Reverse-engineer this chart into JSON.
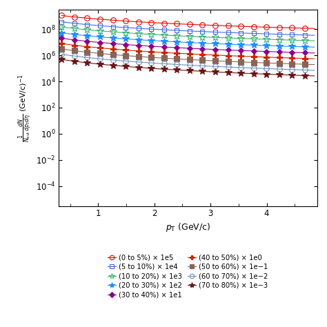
{
  "xlabel": "p$_{\\mathrm{T}}$ (GeV/c)",
  "ylabel": "$\\frac{1}{N_{\\mathrm{evt}}}\\frac{dN}{dp_{\\mathrm{T}}d\\eta}$ (GeV/c)$^{-1}$",
  "xlim": [
    0.3,
    4.9
  ],
  "ylim": [
    3e-06,
    3000000000.0
  ],
  "xticks": [
    1,
    2,
    3,
    4
  ],
  "series": [
    {
      "label": "(0 to 5%) × 1e5",
      "color": "#e60000",
      "marker": "o",
      "mfc": "none",
      "ms": 5.5,
      "A": 1800000000.0,
      "n": 1.5,
      "scale": 1.0
    },
    {
      "label": "(5 to 10%) × 1e4",
      "color": "#4169e1",
      "marker": "s",
      "mfc": "none",
      "ms": 5.0,
      "A": 600000000.0,
      "n": 1.55,
      "scale": 1.0
    },
    {
      "label": "(10 to 20%) × 1e3",
      "color": "#3cb371",
      "marker": "*",
      "mfc": "none",
      "ms": 7.0,
      "A": 250000000.0,
      "n": 1.6,
      "scale": 1.0
    },
    {
      "label": "(20 to 30%) × 1e2",
      "color": "#1e90ff",
      "marker": "*",
      "mfc": "#1e90ff",
      "ms": 7.0,
      "A": 90000000.0,
      "n": 1.65,
      "scale": 1.0
    },
    {
      "label": "(30 to 40%) × 1e1",
      "color": "#8b008b",
      "marker": "D",
      "mfc": "#8b008b",
      "ms": 4.5,
      "A": 35000000.0,
      "n": 1.7,
      "scale": 1.0
    },
    {
      "label": "(40 to 50%) × 1e0",
      "color": "#cc2200",
      "marker": "P",
      "mfc": "#cc2200",
      "ms": 5.5,
      "A": 14000000.0,
      "n": 1.75,
      "scale": 1.0
    },
    {
      "label": "(50 to 60%) × 1e−1",
      "color": "#8b6355",
      "marker": "s",
      "mfc": "#8b6355",
      "ms": 5.5,
      "A": 5500000.0,
      "n": 1.8,
      "scale": 1.0
    },
    {
      "label": "(60 to 70%) × 1e−2",
      "color": "#7090bb",
      "marker": "H",
      "mfc": "none",
      "ms": 6.0,
      "A": 2200000.0,
      "n": 1.85,
      "scale": 1.0
    },
    {
      "label": "(70 to 80%) × 1e−3",
      "color": "#6b1414",
      "marker": "*",
      "mfc": "#6b1414",
      "ms": 7.0,
      "A": 900000.0,
      "n": 1.9,
      "scale": 1.0
    }
  ],
  "legend_col1": [
    {
      "label": "(0 to 5%) × 1e5",
      "color": "#e60000",
      "marker": "o",
      "mfc": "none",
      "ms": 5.5
    },
    {
      "label": "(10 to 20%) × 1e3",
      "color": "#3cb371",
      "marker": "*",
      "mfc": "none",
      "ms": 7.0
    },
    {
      "label": "(30 to 40%) × 1e1",
      "color": "#8b008b",
      "marker": "D",
      "mfc": "#8b008b",
      "ms": 4.5
    },
    {
      "label": "(50 to 60%) × 1e−1",
      "color": "#8b6355",
      "marker": "s",
      "mfc": "#8b6355",
      "ms": 5.5
    },
    {
      "label": "(70 to 80%) × 1e−3",
      "color": "#6b1414",
      "marker": "*",
      "mfc": "#6b1414",
      "ms": 7.0
    }
  ],
  "legend_col2": [
    {
      "label": "(5 to 10%) × 1e4",
      "color": "#4169e1",
      "marker": "s",
      "mfc": "none",
      "ms": 5.0
    },
    {
      "label": "(20 to 30%) × 1e2",
      "color": "#1e90ff",
      "marker": "*",
      "mfc": "#1e90ff",
      "ms": 7.0
    },
    {
      "label": "(40 to 50%) × 1e0",
      "color": "#cc2200",
      "marker": "P",
      "mfc": "#cc2200",
      "ms": 5.5
    },
    {
      "label": "(60 to 70%) × 1e−2",
      "color": "#7090bb",
      "marker": "H",
      "mfc": "none",
      "ms": 6.0
    }
  ]
}
